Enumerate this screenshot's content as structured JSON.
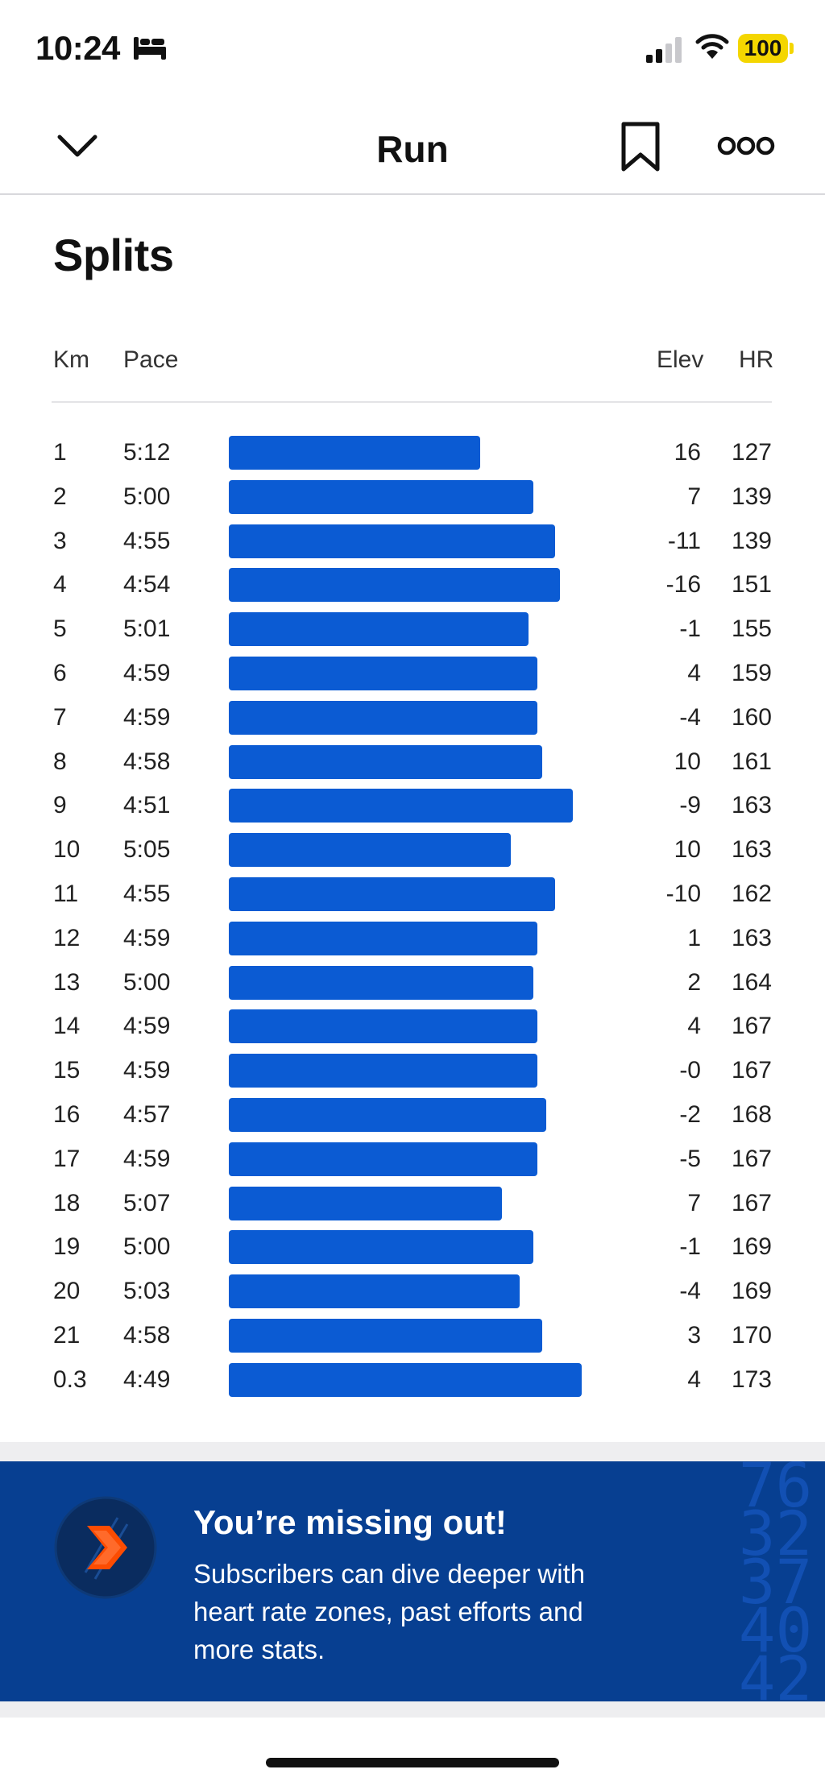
{
  "status": {
    "time": "10:24",
    "battery": "100"
  },
  "nav": {
    "title": "Run",
    "back_icon": "chevron-down-icon",
    "bookmark_icon": "bookmark-icon",
    "more_icon": "more-icon"
  },
  "splits": {
    "title": "Splits",
    "headers": {
      "km": "Km",
      "pace": "Pace",
      "elev": "Elev",
      "hr": "HR"
    },
    "bar_color": "#0b5bd3",
    "rows": [
      {
        "km": "1",
        "pace": "5:12",
        "elev": "16",
        "hr": "127"
      },
      {
        "km": "2",
        "pace": "5:00",
        "elev": "7",
        "hr": "139"
      },
      {
        "km": "3",
        "pace": "4:55",
        "elev": "-11",
        "hr": "139"
      },
      {
        "km": "4",
        "pace": "4:54",
        "elev": "-16",
        "hr": "151"
      },
      {
        "km": "5",
        "pace": "5:01",
        "elev": "-1",
        "hr": "155"
      },
      {
        "km": "6",
        "pace": "4:59",
        "elev": "4",
        "hr": "159"
      },
      {
        "km": "7",
        "pace": "4:59",
        "elev": "-4",
        "hr": "160"
      },
      {
        "km": "8",
        "pace": "4:58",
        "elev": "10",
        "hr": "161"
      },
      {
        "km": "9",
        "pace": "4:51",
        "elev": "-9",
        "hr": "163"
      },
      {
        "km": "10",
        "pace": "5:05",
        "elev": "10",
        "hr": "163"
      },
      {
        "km": "11",
        "pace": "4:55",
        "elev": "-10",
        "hr": "162"
      },
      {
        "km": "12",
        "pace": "4:59",
        "elev": "1",
        "hr": "163"
      },
      {
        "km": "13",
        "pace": "5:00",
        "elev": "2",
        "hr": "164"
      },
      {
        "km": "14",
        "pace": "4:59",
        "elev": "4",
        "hr": "167"
      },
      {
        "km": "15",
        "pace": "4:59",
        "elev": "-0",
        "hr": "167"
      },
      {
        "km": "16",
        "pace": "4:57",
        "elev": "-2",
        "hr": "168"
      },
      {
        "km": "17",
        "pace": "4:59",
        "elev": "-5",
        "hr": "167"
      },
      {
        "km": "18",
        "pace": "5:07",
        "elev": "7",
        "hr": "167"
      },
      {
        "km": "19",
        "pace": "5:00",
        "elev": "-1",
        "hr": "169"
      },
      {
        "km": "20",
        "pace": "5:03",
        "elev": "-4",
        "hr": "169"
      },
      {
        "km": "21",
        "pace": "4:58",
        "elev": "3",
        "hr": "170"
      },
      {
        "km": "0.3",
        "pace": "4:49",
        "elev": "4",
        "hr": "173"
      }
    ]
  },
  "promo": {
    "title": "You’re missing out!",
    "body": "Subscribers can dive deeper with heart rate zones, past efforts and more stats.",
    "background": "#073f91",
    "logo_icon": "subscription-chevron-icon",
    "deco_numbers": [
      "76.",
      "32.",
      "37.",
      "40.",
      "42"
    ]
  }
}
